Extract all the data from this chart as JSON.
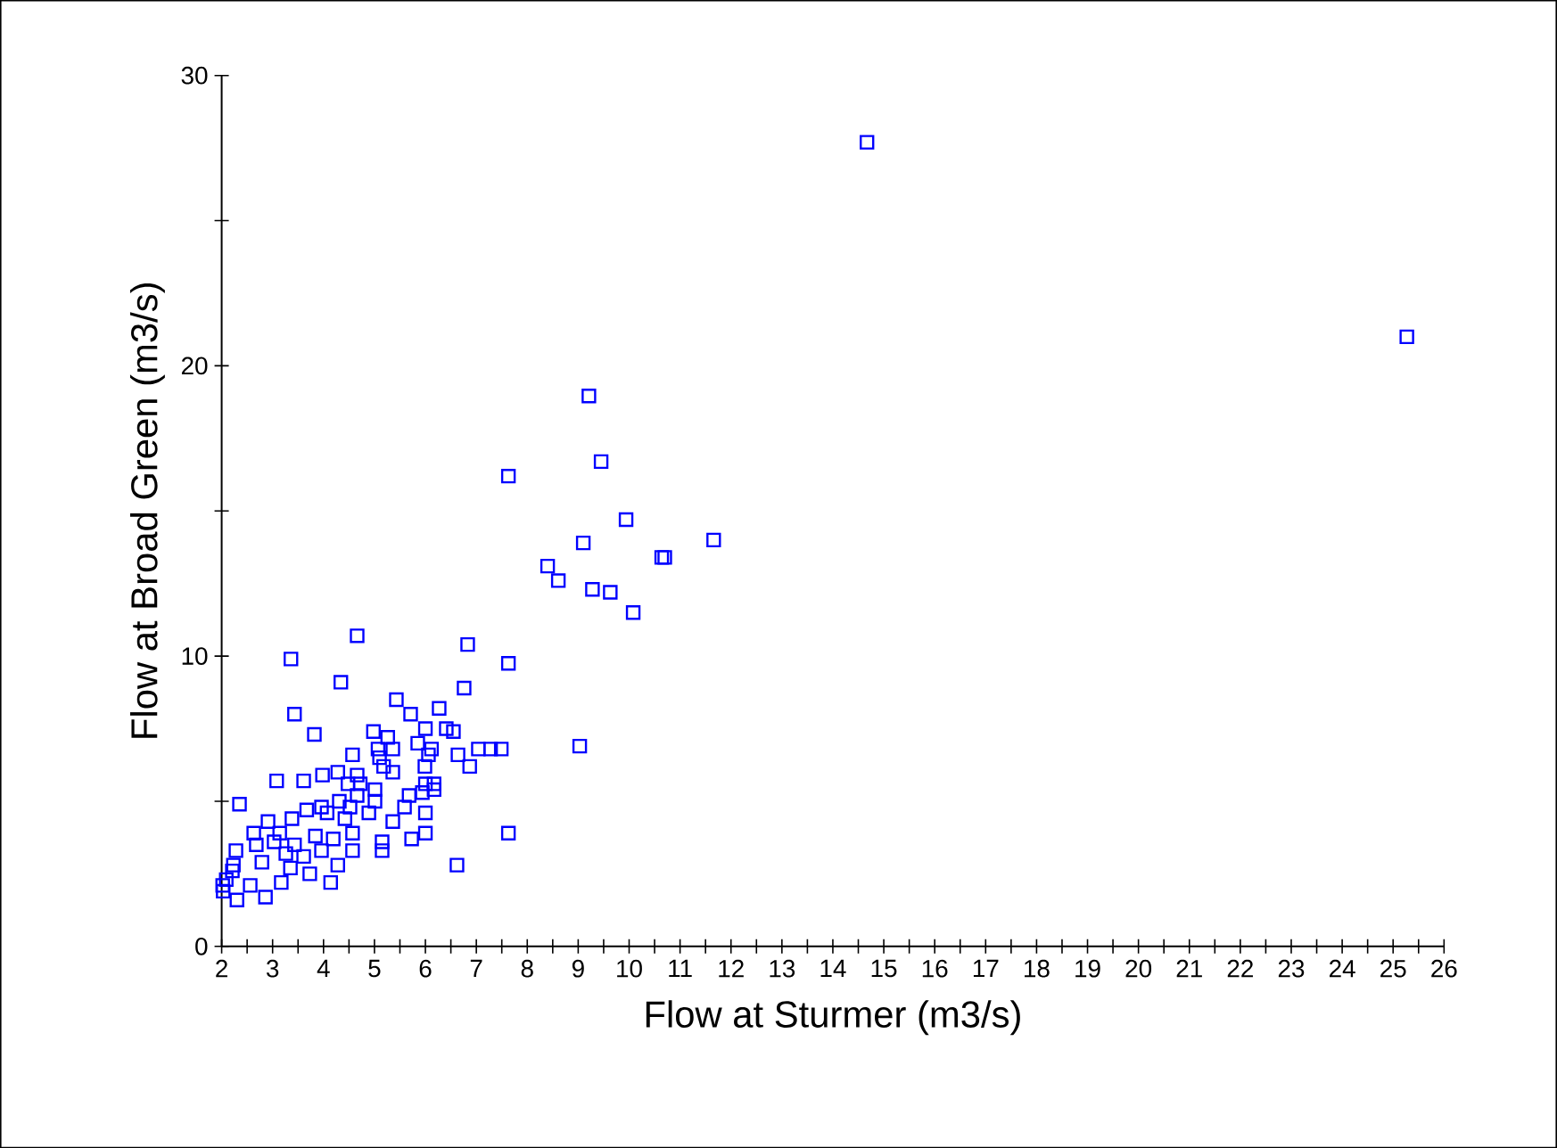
{
  "chart_data": {
    "type": "scatter",
    "xlabel": "Flow at Sturmer (m3/s)",
    "ylabel": "Flow at Broad Green (m3/s)",
    "xlim": [
      2,
      26
    ],
    "xticks": [
      2,
      3,
      4,
      5,
      6,
      7,
      8,
      9,
      10,
      11,
      12,
      13,
      14,
      15,
      16,
      17,
      18,
      19,
      20,
      21,
      22,
      23,
      24,
      25,
      26
    ],
    "ylim": [
      0,
      30
    ],
    "yticks": [
      0,
      10,
      20,
      30
    ],
    "grid": false,
    "marker": "square",
    "series": [
      {
        "color": "#0000ff",
        "x": [
          14.67,
          25.27,
          9.21,
          7.63,
          9.45,
          9.94,
          9.1,
          11.66,
          8.4,
          8.61,
          10.64,
          10.7,
          9.28,
          9.63,
          10.08,
          9.03,
          3.36,
          4.66,
          6.83,
          3.43,
          4.34,
          7.63,
          6.76,
          3.82,
          5.43,
          7.63,
          6.62,
          2.35,
          3.08,
          3.61,
          7.04,
          7.28,
          7.49,
          5.71,
          6.27,
          4.98,
          5.26,
          6.0,
          6.41,
          6.55,
          5.85,
          6.12,
          6.64,
          6.87,
          4.57,
          4.28,
          3.98,
          5.18,
          5.36,
          5.99,
          6.06,
          6.0,
          5.94,
          5.68,
          5.01,
          4.66,
          4.52,
          4.31,
          3.96,
          3.67,
          5.36,
          6.0,
          5.73,
          5.15,
          5.15,
          4.57,
          4.57,
          4.28,
          4.14,
          3.73,
          3.35,
          3.17,
          2.86,
          2.63,
          2.91,
          3.14,
          2.28,
          2.23,
          2.09,
          2.03,
          2.3,
          2.56,
          2.79,
          3.43,
          3.84,
          3.96,
          3.61,
          3.26,
          4.19,
          4.42,
          4.89,
          5.01,
          4.72,
          4.48,
          4.66,
          5.59,
          6.0,
          6.17,
          6.17,
          2.68,
          3.03,
          2.21,
          2.02,
          4.07,
          3.38,
          5.07,
          5.36,
          5.1
        ],
        "values": [
          27.7,
          21.0,
          18.96,
          16.2,
          16.7,
          14.7,
          13.9,
          14.0,
          13.1,
          12.6,
          13.4,
          13.4,
          12.3,
          12.2,
          11.5,
          6.9,
          9.9,
          10.7,
          10.4,
          8.0,
          9.1,
          9.75,
          8.9,
          7.3,
          8.5,
          3.9,
          2.8,
          4.9,
          5.7,
          5.7,
          6.8,
          6.8,
          6.8,
          8.0,
          8.2,
          7.4,
          7.2,
          7.5,
          7.5,
          7.4,
          7.0,
          6.8,
          6.6,
          6.2,
          6.6,
          6.0,
          5.9,
          6.2,
          6.0,
          6.2,
          6.6,
          5.6,
          5.3,
          5.2,
          5.4,
          5.2,
          4.8,
          5.0,
          4.8,
          4.7,
          4.3,
          3.9,
          3.7,
          3.3,
          3.6,
          3.9,
          3.3,
          2.8,
          2.2,
          2.5,
          2.7,
          2.2,
          1.7,
          3.9,
          4.3,
          3.9,
          3.3,
          2.8,
          2.3,
          1.9,
          1.6,
          2.1,
          2.9,
          3.5,
          3.8,
          3.3,
          3.1,
          3.2,
          3.7,
          4.4,
          4.6,
          5.0,
          5.6,
          5.6,
          5.9,
          4.8,
          4.6,
          5.4,
          5.6,
          3.5,
          3.6,
          2.6,
          2.1,
          4.6,
          4.4,
          6.8,
          6.8,
          6.5
        ]
      }
    ]
  }
}
